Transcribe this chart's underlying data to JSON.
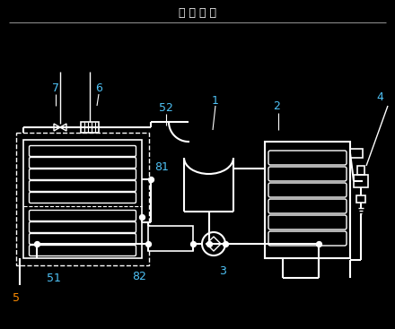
{
  "title": "摘 要 附 图",
  "bg_color": "#000000",
  "line_color": "#ffffff",
  "label_color": "#4fc3f7",
  "title_color": "#ffffff",
  "label_5_color": "#ff8c00",
  "figsize": [
    4.4,
    3.67
  ],
  "dpi": 100
}
